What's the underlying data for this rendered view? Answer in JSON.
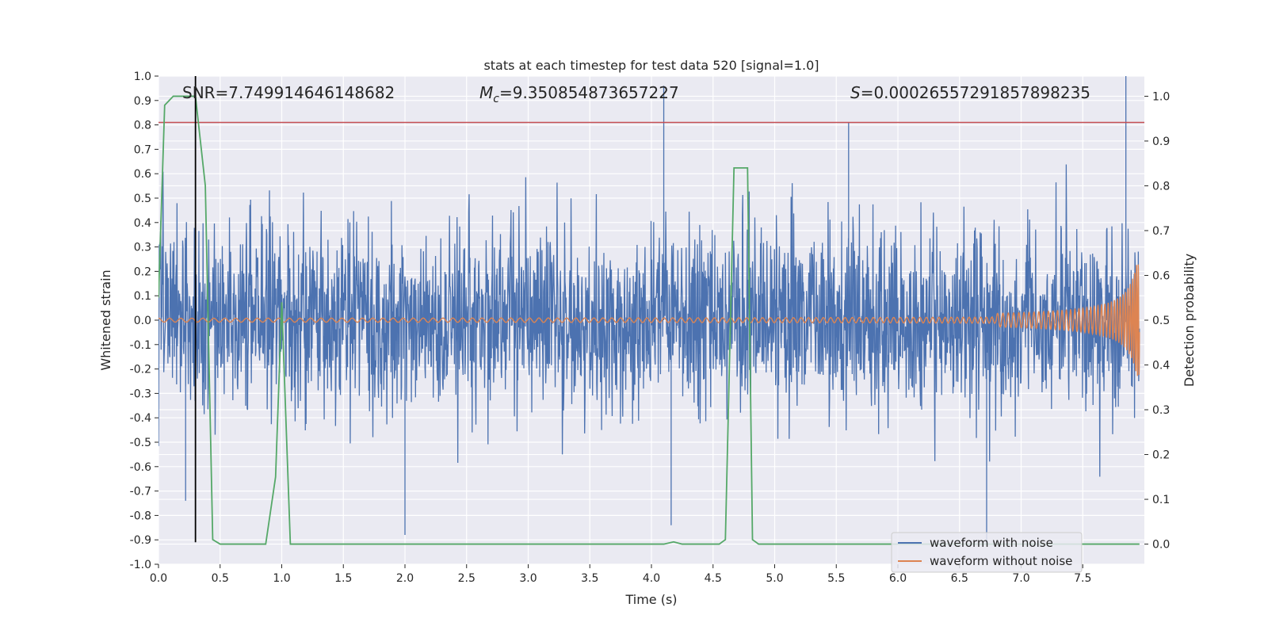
{
  "chart_data": {
    "type": "line",
    "title": "stats at each timestep for test data 520 [signal=1.0]",
    "xlabel": "Time (s)",
    "ylabel_left": "Whitened strain",
    "ylabel_right": "Detection probability",
    "xlim": [
      0.0,
      8.0
    ],
    "ylim_left": [
      -1.0,
      1.0
    ],
    "ylim_right": [
      -0.045,
      1.045
    ],
    "x_ticks": [
      "0.0",
      "0.5",
      "1.0",
      "1.5",
      "2.0",
      "2.5",
      "3.0",
      "3.5",
      "4.0",
      "4.5",
      "5.0",
      "5.5",
      "6.0",
      "6.5",
      "7.0",
      "7.5"
    ],
    "y_ticks_left": [
      "1.0",
      "0.9",
      "0.8",
      "0.7",
      "0.6",
      "0.5",
      "0.4",
      "0.3",
      "0.2",
      "0.1",
      "0.0",
      "-0.1",
      "-0.2",
      "-0.3",
      "-0.4",
      "-0.5",
      "-0.6",
      "-0.7",
      "-0.8",
      "-0.9",
      "-1.0"
    ],
    "y_ticks_right": [
      "1.0",
      "0.9",
      "0.8",
      "0.7",
      "0.6",
      "0.5",
      "0.4",
      "0.3",
      "0.2",
      "0.1",
      "0.0"
    ],
    "annotations": {
      "snr": "SNR=7.749914646148682",
      "mc_symbol": "M",
      "mc_sub": "c",
      "mc_value": "=9.350854873657227",
      "s_symbol": "S",
      "s_value": "=0.00026557291857898235"
    },
    "threshold_line": {
      "y": 0.81,
      "color": "#c44e52"
    },
    "marker_line": {
      "x": 0.3,
      "y_range": [
        -0.91,
        1.0
      ],
      "color": "#000000"
    },
    "series": [
      {
        "name": "waveform with noise",
        "color": "#4c72b0",
        "axis": "left",
        "noise_envelope": 0.35
      },
      {
        "name": "waveform without noise",
        "color": "#dd8452",
        "axis": "left",
        "chirp_end_time": 8.0
      },
      {
        "name": "",
        "color": "#55a868",
        "axis": "right",
        "x": [
          0.0,
          0.05,
          0.12,
          0.22,
          0.3,
          0.38,
          0.44,
          0.5,
          0.87,
          0.95,
          1.0,
          1.07,
          4.1,
          4.18,
          4.25,
          4.55,
          4.6,
          4.67,
          4.7,
          4.78,
          4.82,
          4.87,
          7.96
        ],
        "y": [
          0.55,
          0.98,
          1.0,
          1.0,
          1.0,
          0.8,
          0.01,
          0.0,
          0.0,
          0.15,
          0.54,
          0.0,
          0.0,
          0.005,
          0.0,
          0.0,
          0.01,
          0.84,
          0.84,
          0.84,
          0.01,
          0.0,
          0.0
        ]
      }
    ],
    "spikes": [
      {
        "x": 4.1,
        "y": 0.96
      },
      {
        "x": 7.85,
        "y": 1.0
      },
      {
        "x": 5.6,
        "y": 0.81
      },
      {
        "x": 2.0,
        "y": -0.88
      },
      {
        "x": 4.16,
        "y": -0.84
      },
      {
        "x": 6.72,
        "y": -0.92
      },
      {
        "x": 0.22,
        "y": -0.74
      }
    ],
    "grid": true,
    "legend_position": "bottom-right"
  }
}
